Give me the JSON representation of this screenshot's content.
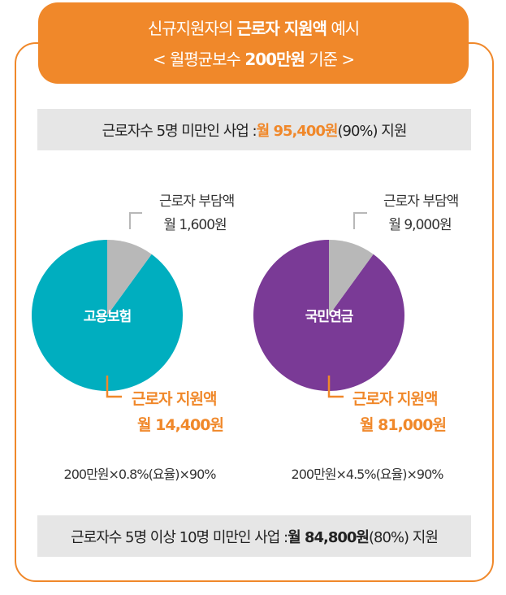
{
  "header": {
    "line1_pre": "신규지원자의 ",
    "line1_bold": "근로자 지원액",
    "line1_post": " 예시",
    "line2_pre": "< 월평균보수 ",
    "line2_bold": "200만원",
    "line2_post": " 기준 >"
  },
  "band_top": {
    "pre": "근로자수 5명 미만인 사업 : ",
    "amount": "월 95,400원",
    "post": "(90%) 지원"
  },
  "band_bottom": {
    "pre": "근로자수 5명 이상 10명 미만인 사업 : ",
    "amount": "월 84,800원",
    "post": "(80%) 지원"
  },
  "colors": {
    "orange": "#f0882a",
    "teal": "#00aebf",
    "purple": "#7a3a96",
    "gray": "#b8b8b8"
  },
  "chart_data": [
    {
      "type": "pie",
      "title": "고용보험",
      "slices": [
        {
          "name": "근로자 부담액",
          "label_line1": "근로자 부담액",
          "label_line2": "월 1,600원",
          "value": 1600,
          "color": "#b8b8b8"
        },
        {
          "name": "근로자 지원액",
          "label_line1": "근로자 지원액",
          "label_line2": "월 14,400원",
          "value": 14400,
          "color": "#00aebf"
        }
      ],
      "formula": "200만원×0.8%(요율)×90%"
    },
    {
      "type": "pie",
      "title": "국민연금",
      "slices": [
        {
          "name": "근로자 부담액",
          "label_line1": "근로자 부담액",
          "label_line2": "월 9,000원",
          "value": 9000,
          "color": "#b8b8b8"
        },
        {
          "name": "근로자 지원액",
          "label_line1": "근로자 지원액",
          "label_line2": "월 81,000원",
          "value": 81000,
          "color": "#7a3a96"
        }
      ],
      "formula": "200만원×4.5%(요율)×90%"
    }
  ]
}
